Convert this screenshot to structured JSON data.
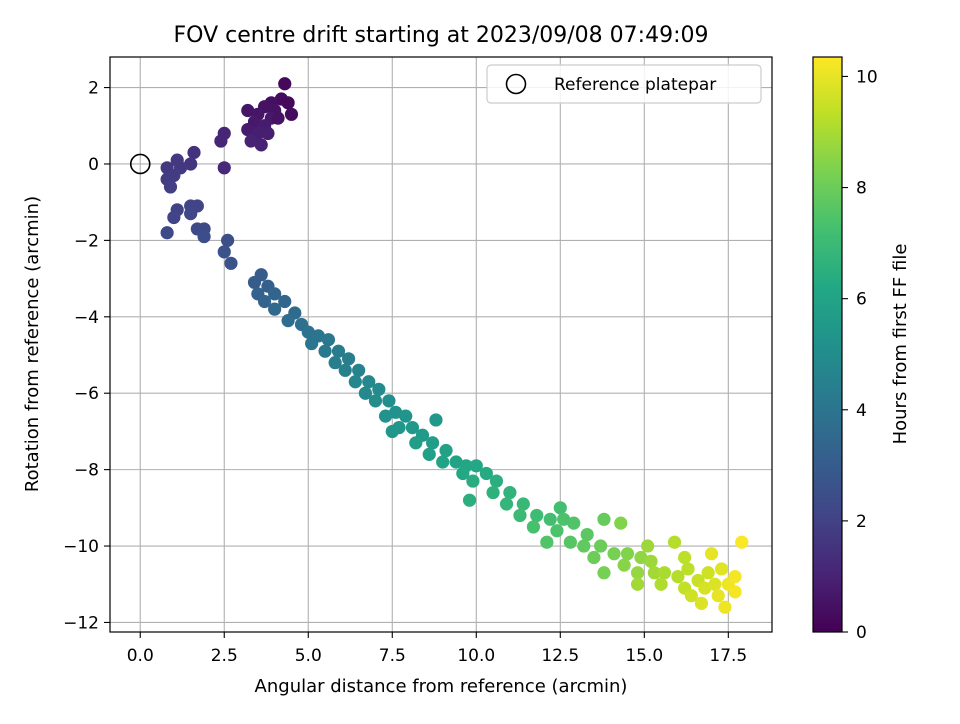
{
  "chart_data": {
    "type": "scatter",
    "title": "FOV centre drift starting at 2023/09/08 07:49:09",
    "xlabel": "Angular distance from reference (arcmin)",
    "ylabel": "Rotation from reference (arcmin)",
    "colorbar_label": "Hours from first FF file",
    "xlim": [
      -0.9,
      18.8
    ],
    "ylim": [
      -12.25,
      2.8
    ],
    "x_ticks": [
      "0.0",
      "2.5",
      "5.0",
      "7.5",
      "10.0",
      "12.5",
      "15.0",
      "17.5"
    ],
    "y_ticks": [
      "−12",
      "−10",
      "−8",
      "−6",
      "−4",
      "−2",
      "0",
      "2"
    ],
    "colorbar_ticks": [
      "0",
      "2",
      "4",
      "6",
      "8",
      "10"
    ],
    "colorbar_range": [
      0,
      10.35
    ],
    "colormap": "viridis",
    "grid": true,
    "legend": {
      "position": "top-right",
      "label": "Reference platepar"
    },
    "reference_point": {
      "x": 0.0,
      "y": 0.0
    },
    "points": [
      {
        "x": 4.3,
        "y": 2.1,
        "t": 0.2
      },
      {
        "x": 4.2,
        "y": 1.7,
        "t": 0.3
      },
      {
        "x": 3.9,
        "y": 1.6,
        "t": 0.4
      },
      {
        "x": 4.4,
        "y": 1.6,
        "t": 0.2
      },
      {
        "x": 4.5,
        "y": 1.3,
        "t": 0.3
      },
      {
        "x": 4.0,
        "y": 1.4,
        "t": 0.5
      },
      {
        "x": 3.7,
        "y": 1.5,
        "t": 0.5
      },
      {
        "x": 3.2,
        "y": 1.4,
        "t": 0.6
      },
      {
        "x": 3.5,
        "y": 1.3,
        "t": 0.6
      },
      {
        "x": 3.9,
        "y": 1.2,
        "t": 0.7
      },
      {
        "x": 4.1,
        "y": 1.2,
        "t": 0.5
      },
      {
        "x": 3.4,
        "y": 1.1,
        "t": 0.7
      },
      {
        "x": 3.7,
        "y": 1.0,
        "t": 0.8
      },
      {
        "x": 3.2,
        "y": 0.9,
        "t": 0.8
      },
      {
        "x": 3.5,
        "y": 0.8,
        "t": 0.9
      },
      {
        "x": 3.8,
        "y": 0.8,
        "t": 0.9
      },
      {
        "x": 3.3,
        "y": 0.6,
        "t": 1.0
      },
      {
        "x": 3.6,
        "y": 0.5,
        "t": 1.0
      },
      {
        "x": 2.5,
        "y": 0.8,
        "t": 1.1
      },
      {
        "x": 2.4,
        "y": 0.6,
        "t": 1.1
      },
      {
        "x": 2.5,
        "y": -0.1,
        "t": 1.2
      },
      {
        "x": 1.6,
        "y": 0.3,
        "t": 1.5
      },
      {
        "x": 1.5,
        "y": 0.0,
        "t": 1.6
      },
      {
        "x": 1.1,
        "y": 0.1,
        "t": 1.7
      },
      {
        "x": 0.8,
        "y": -0.1,
        "t": 1.7
      },
      {
        "x": 1.2,
        "y": -0.1,
        "t": 1.7
      },
      {
        "x": 0.8,
        "y": -0.4,
        "t": 1.8
      },
      {
        "x": 1.0,
        "y": -0.3,
        "t": 1.8
      },
      {
        "x": 0.9,
        "y": -0.6,
        "t": 1.9
      },
      {
        "x": 1.1,
        "y": -1.2,
        "t": 2.0
      },
      {
        "x": 1.0,
        "y": -1.4,
        "t": 2.1
      },
      {
        "x": 1.5,
        "y": -1.1,
        "t": 2.1
      },
      {
        "x": 1.7,
        "y": -1.1,
        "t": 2.1
      },
      {
        "x": 1.5,
        "y": -1.3,
        "t": 2.2
      },
      {
        "x": 1.7,
        "y": -1.7,
        "t": 2.3
      },
      {
        "x": 1.9,
        "y": -1.7,
        "t": 2.3
      },
      {
        "x": 0.8,
        "y": -1.8,
        "t": 2.3
      },
      {
        "x": 1.9,
        "y": -1.9,
        "t": 2.4
      },
      {
        "x": 2.6,
        "y": -2.0,
        "t": 2.5
      },
      {
        "x": 2.5,
        "y": -2.3,
        "t": 2.6
      },
      {
        "x": 2.7,
        "y": -2.6,
        "t": 2.7
      },
      {
        "x": 3.6,
        "y": -2.9,
        "t": 3.0
      },
      {
        "x": 3.4,
        "y": -3.1,
        "t": 3.0
      },
      {
        "x": 3.8,
        "y": -3.2,
        "t": 3.1
      },
      {
        "x": 3.5,
        "y": -3.4,
        "t": 3.2
      },
      {
        "x": 4.0,
        "y": -3.4,
        "t": 3.3
      },
      {
        "x": 3.7,
        "y": -3.6,
        "t": 3.3
      },
      {
        "x": 4.3,
        "y": -3.6,
        "t": 3.4
      },
      {
        "x": 4.0,
        "y": -3.8,
        "t": 3.5
      },
      {
        "x": 4.6,
        "y": -3.9,
        "t": 3.6
      },
      {
        "x": 4.4,
        "y": -4.1,
        "t": 3.7
      },
      {
        "x": 4.8,
        "y": -4.2,
        "t": 3.8
      },
      {
        "x": 5.0,
        "y": -4.4,
        "t": 3.9
      },
      {
        "x": 5.3,
        "y": -4.5,
        "t": 4.0
      },
      {
        "x": 5.1,
        "y": -4.7,
        "t": 4.0
      },
      {
        "x": 5.6,
        "y": -4.6,
        "t": 4.1
      },
      {
        "x": 5.5,
        "y": -4.9,
        "t": 4.2
      },
      {
        "x": 5.9,
        "y": -4.9,
        "t": 4.3
      },
      {
        "x": 5.8,
        "y": -5.2,
        "t": 4.4
      },
      {
        "x": 6.2,
        "y": -5.1,
        "t": 4.4
      },
      {
        "x": 6.1,
        "y": -5.4,
        "t": 4.5
      },
      {
        "x": 6.5,
        "y": -5.4,
        "t": 4.6
      },
      {
        "x": 6.4,
        "y": -5.7,
        "t": 4.7
      },
      {
        "x": 6.8,
        "y": -5.7,
        "t": 4.8
      },
      {
        "x": 6.7,
        "y": -6.0,
        "t": 4.8
      },
      {
        "x": 7.1,
        "y": -5.9,
        "t": 4.9
      },
      {
        "x": 7.0,
        "y": -6.2,
        "t": 5.0
      },
      {
        "x": 7.4,
        "y": -6.2,
        "t": 5.1
      },
      {
        "x": 7.6,
        "y": -6.5,
        "t": 5.2
      },
      {
        "x": 7.3,
        "y": -6.6,
        "t": 5.2
      },
      {
        "x": 7.9,
        "y": -6.6,
        "t": 5.3
      },
      {
        "x": 7.7,
        "y": -6.9,
        "t": 5.4
      },
      {
        "x": 8.1,
        "y": -6.9,
        "t": 5.5
      },
      {
        "x": 8.8,
        "y": -6.7,
        "t": 5.5
      },
      {
        "x": 7.5,
        "y": -7.0,
        "t": 5.4
      },
      {
        "x": 8.4,
        "y": -7.1,
        "t": 5.6
      },
      {
        "x": 8.2,
        "y": -7.3,
        "t": 5.7
      },
      {
        "x": 8.7,
        "y": -7.3,
        "t": 5.7
      },
      {
        "x": 8.6,
        "y": -7.6,
        "t": 5.8
      },
      {
        "x": 9.1,
        "y": -7.5,
        "t": 5.9
      },
      {
        "x": 9.0,
        "y": -7.8,
        "t": 6.0
      },
      {
        "x": 9.4,
        "y": -7.8,
        "t": 6.0
      },
      {
        "x": 9.7,
        "y": -7.9,
        "t": 6.1
      },
      {
        "x": 10.0,
        "y": -7.9,
        "t": 6.2
      },
      {
        "x": 9.6,
        "y": -8.1,
        "t": 6.2
      },
      {
        "x": 10.3,
        "y": -8.1,
        "t": 6.3
      },
      {
        "x": 9.9,
        "y": -8.3,
        "t": 6.4
      },
      {
        "x": 10.6,
        "y": -8.3,
        "t": 6.5
      },
      {
        "x": 10.5,
        "y": -8.6,
        "t": 6.6
      },
      {
        "x": 9.8,
        "y": -8.8,
        "t": 6.5
      },
      {
        "x": 11.0,
        "y": -8.6,
        "t": 6.7
      },
      {
        "x": 10.9,
        "y": -8.9,
        "t": 6.8
      },
      {
        "x": 11.4,
        "y": -8.9,
        "t": 6.9
      },
      {
        "x": 11.3,
        "y": -9.2,
        "t": 7.0
      },
      {
        "x": 11.8,
        "y": -9.2,
        "t": 7.1
      },
      {
        "x": 12.2,
        "y": -9.3,
        "t": 7.2
      },
      {
        "x": 12.5,
        "y": -9.0,
        "t": 7.2
      },
      {
        "x": 11.7,
        "y": -9.5,
        "t": 7.3
      },
      {
        "x": 12.4,
        "y": -9.6,
        "t": 7.4
      },
      {
        "x": 12.9,
        "y": -9.4,
        "t": 7.5
      },
      {
        "x": 12.1,
        "y": -9.9,
        "t": 7.5
      },
      {
        "x": 12.8,
        "y": -9.9,
        "t": 7.6
      },
      {
        "x": 13.3,
        "y": -9.7,
        "t": 7.7
      },
      {
        "x": 13.2,
        "y": -10.0,
        "t": 7.8
      },
      {
        "x": 13.8,
        "y": -9.3,
        "t": 7.9
      },
      {
        "x": 13.7,
        "y": -10.0,
        "t": 8.0
      },
      {
        "x": 13.5,
        "y": -10.3,
        "t": 8.0
      },
      {
        "x": 14.1,
        "y": -10.2,
        "t": 8.2
      },
      {
        "x": 13.8,
        "y": -10.7,
        "t": 8.2
      },
      {
        "x": 14.5,
        "y": -10.2,
        "t": 8.4
      },
      {
        "x": 14.4,
        "y": -10.5,
        "t": 8.5
      },
      {
        "x": 14.9,
        "y": -10.3,
        "t": 8.6
      },
      {
        "x": 14.8,
        "y": -10.7,
        "t": 8.7
      },
      {
        "x": 15.2,
        "y": -10.4,
        "t": 8.8
      },
      {
        "x": 15.3,
        "y": -10.7,
        "t": 8.9
      },
      {
        "x": 14.8,
        "y": -11.0,
        "t": 8.9
      },
      {
        "x": 15.6,
        "y": -10.7,
        "t": 9.0
      },
      {
        "x": 15.5,
        "y": -11.0,
        "t": 9.1
      },
      {
        "x": 16.0,
        "y": -10.8,
        "t": 9.2
      },
      {
        "x": 16.3,
        "y": -10.6,
        "t": 9.3
      },
      {
        "x": 15.9,
        "y": -9.9,
        "t": 9.2
      },
      {
        "x": 16.2,
        "y": -11.1,
        "t": 9.4
      },
      {
        "x": 16.6,
        "y": -10.9,
        "t": 9.5
      },
      {
        "x": 16.4,
        "y": -11.3,
        "t": 9.6
      },
      {
        "x": 16.9,
        "y": -10.7,
        "t": 9.6
      },
      {
        "x": 16.8,
        "y": -11.1,
        "t": 9.7
      },
      {
        "x": 17.1,
        "y": -11.0,
        "t": 9.8
      },
      {
        "x": 16.7,
        "y": -11.5,
        "t": 9.8
      },
      {
        "x": 17.3,
        "y": -10.6,
        "t": 9.9
      },
      {
        "x": 17.2,
        "y": -11.3,
        "t": 10.0
      },
      {
        "x": 17.5,
        "y": -11.0,
        "t": 10.1
      },
      {
        "x": 17.4,
        "y": -11.6,
        "t": 10.1
      },
      {
        "x": 17.7,
        "y": -10.8,
        "t": 10.2
      },
      {
        "x": 17.7,
        "y": -11.2,
        "t": 10.2
      },
      {
        "x": 17.9,
        "y": -9.9,
        "t": 10.3
      },
      {
        "x": 17.0,
        "y": -10.2,
        "t": 10.0
      },
      {
        "x": 16.2,
        "y": -10.3,
        "t": 9.3
      },
      {
        "x": 15.1,
        "y": -10.0,
        "t": 8.8
      },
      {
        "x": 14.3,
        "y": -9.4,
        "t": 8.4
      },
      {
        "x": 12.6,
        "y": -9.3,
        "t": 7.4
      }
    ]
  }
}
